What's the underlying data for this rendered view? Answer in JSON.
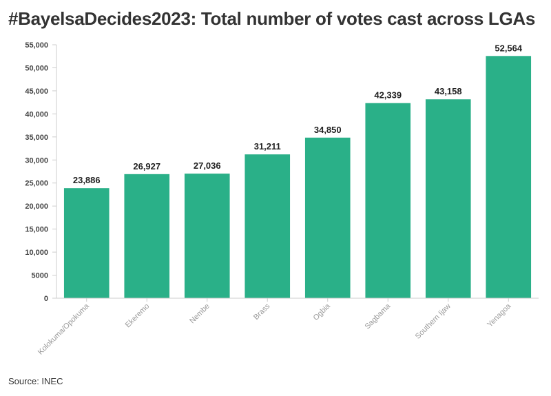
{
  "title": "#BayelsaDecides2023: Total number of votes cast across LGAs",
  "source": "Source: INEC",
  "colors": {
    "bar": "#2ab088",
    "axis": "#cccccc",
    "grid": "#eeeeee"
  },
  "chart_data": {
    "type": "bar",
    "title": "#BayelsaDecides2023: Total number of votes cast across LGAs",
    "categories": [
      "Kolokuma/Opokuma",
      "Ekeremo",
      "Nembe",
      "Brass",
      "Ogbia",
      "Sagbama",
      "Southern Ijaw",
      "Yenagoa"
    ],
    "values": [
      23886,
      26927,
      27036,
      31211,
      34850,
      42339,
      43158,
      52564
    ],
    "data_labels": [
      "23,886",
      "26,927",
      "27,036",
      "31,211",
      "34,850",
      "42,339",
      "43,158",
      "52,564"
    ],
    "ylim": [
      0,
      55000
    ],
    "yticks": [
      0,
      5000,
      10000,
      15000,
      20000,
      25000,
      30000,
      35000,
      40000,
      45000,
      50000,
      55000
    ],
    "ytick_labels": [
      "0",
      "5000",
      "10,000",
      "15,000",
      "20,000",
      "25,000",
      "30,000",
      "35,000",
      "40,000",
      "45,000",
      "50,000",
      "55,000"
    ],
    "xlabel": "",
    "ylabel": "",
    "grid": false,
    "legend": "none"
  }
}
